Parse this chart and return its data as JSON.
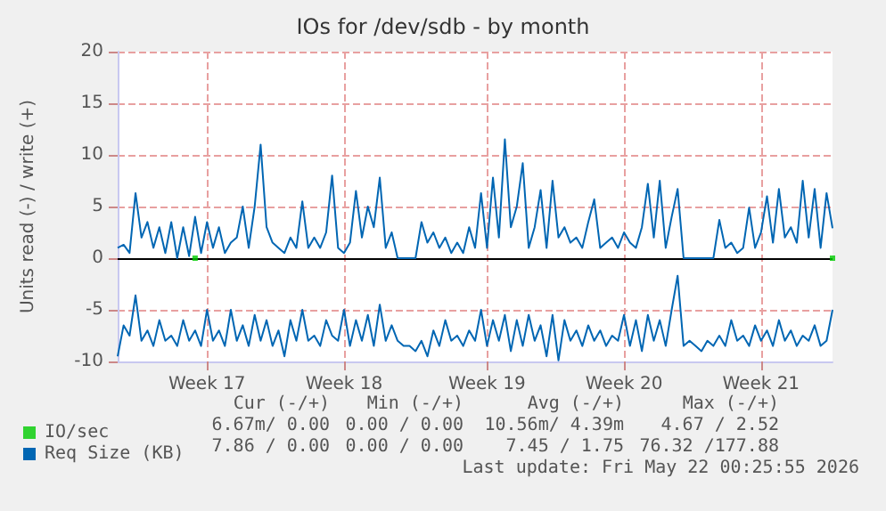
{
  "chart_data": {
    "type": "line",
    "title": "IOs for /dev/sdb - by month",
    "ylabel": "Units read (-) / write (+)",
    "categories": [
      null,
      null,
      null,
      null,
      null,
      null,
      null,
      null,
      null,
      null,
      null,
      null,
      null,
      null,
      null,
      "Week 17",
      null,
      null,
      null,
      null,
      null,
      null,
      null,
      null,
      null,
      null,
      null,
      null,
      null,
      null,
      null,
      null,
      null,
      null,
      null,
      null,
      null,
      null,
      "Week 18",
      null,
      null,
      null,
      null,
      null,
      null,
      null,
      null,
      null,
      null,
      null,
      null,
      null,
      null,
      null,
      null,
      null,
      null,
      null,
      null,
      null,
      null,
      null,
      "Week 19",
      null,
      null,
      null,
      null,
      null,
      null,
      null,
      null,
      null,
      null,
      null,
      null,
      null,
      null,
      null,
      null,
      null,
      null,
      null,
      null,
      null,
      null,
      "Week 20",
      null,
      null,
      null,
      null,
      null,
      null,
      null,
      null,
      null,
      null,
      null,
      null,
      null,
      null,
      null,
      null,
      null,
      null,
      null,
      null,
      null,
      null,
      "Week 21",
      null,
      null,
      null,
      null,
      null,
      null,
      null,
      null,
      null,
      null,
      null,
      null
    ],
    "series": [
      {
        "name": "Req Size (KB)",
        "color": "#0066b3",
        "values": [
          1,
          1.3,
          0.5,
          6.3,
          2,
          3.5,
          1,
          3,
          0.5,
          3.5,
          0,
          3,
          0.2,
          4,
          0.5,
          3.5,
          1,
          3,
          0.5,
          1.5,
          2,
          5,
          1,
          5,
          11,
          3,
          1.5,
          1,
          0.5,
          2,
          1,
          5.5,
          1,
          2,
          1,
          2.5,
          8,
          1,
          0.5,
          1.5,
          6.5,
          2,
          5,
          3,
          7.8,
          1,
          2.5,
          0,
          0,
          0,
          0,
          3.5,
          1.5,
          2.5,
          1,
          2,
          0.5,
          1.5,
          0.5,
          3,
          1,
          6.3,
          1,
          7.8,
          2,
          11.5,
          3,
          5,
          9.2,
          1,
          3,
          6.6,
          1,
          7.5,
          2,
          3,
          1.5,
          2,
          1,
          3.5,
          5.7,
          1,
          1.5,
          2,
          1,
          2.5,
          1.5,
          1,
          3,
          7.2,
          2,
          7.5,
          1,
          4,
          6.7,
          0,
          0,
          0,
          0,
          0,
          0,
          3.7,
          1,
          1.5,
          0.5,
          1,
          4.9,
          1,
          2.5,
          6,
          1.5,
          6.7,
          2,
          3,
          1.5,
          7.5,
          2,
          6.7,
          1,
          6.3,
          2.9
        ]
      },
      {
        "color": "#0066b3",
        "values": [
          -9.5,
          -6.5,
          -7.5,
          -3.6,
          -8,
          -7,
          -8.5,
          -6,
          -8,
          -7.5,
          -8.5,
          -6,
          -8,
          -7,
          -8.5,
          -5,
          -8,
          -7,
          -8.5,
          -5,
          -8,
          -6.5,
          -8.5,
          -5.5,
          -8,
          -6,
          -8.5,
          -7,
          -9.5,
          -6,
          -8,
          -5,
          -8,
          -7.5,
          -8.5,
          -6,
          -7.5,
          -8,
          -5,
          -8.5,
          -6,
          -8,
          -5.5,
          -8.5,
          -4.5,
          -8,
          -6.5,
          -8,
          -8.5,
          -8.5,
          -9,
          -8,
          -9.5,
          -7,
          -8.5,
          -6,
          -8,
          -7.5,
          -8.5,
          -7,
          -8,
          -5,
          -8.5,
          -6,
          -8,
          -5.5,
          -9,
          -6,
          -8.5,
          -5.5,
          -8,
          -6.5,
          -9.5,
          -5.5,
          -9.9,
          -6,
          -8,
          -7,
          -8.5,
          -6.5,
          -8,
          -7,
          -8.5,
          -7.5,
          -8,
          -5.5,
          -8.5,
          -6,
          -9,
          -5.5,
          -8,
          -6,
          -8.5,
          -5,
          -1.7,
          -8.5,
          -8,
          -8.5,
          -9,
          -8,
          -8.5,
          -7.5,
          -8.5,
          -6,
          -8,
          -7.5,
          -8.5,
          -6.5,
          -8,
          -7,
          -8.5,
          -6,
          -8,
          -7,
          -8.5,
          -7.5,
          -8,
          -6.5,
          -8.5,
          -8,
          -5
        ]
      },
      {
        "name": "IO/sec",
        "type": "scatter",
        "marker": "square",
        "color": "#00cc00",
        "values": [
          null,
          null,
          null,
          null,
          null,
          null,
          null,
          null,
          null,
          null,
          null,
          null,
          null,
          0,
          null,
          null,
          null,
          null,
          null,
          null,
          null,
          null,
          null,
          null,
          null,
          null,
          null,
          null,
          null,
          null,
          null,
          null,
          null,
          null,
          null,
          null,
          null,
          null,
          null,
          null,
          null,
          null,
          null,
          null,
          null,
          null,
          null,
          null,
          null,
          null,
          null,
          null,
          null,
          null,
          null,
          null,
          null,
          null,
          null,
          null,
          null,
          null,
          null,
          null,
          null,
          null,
          null,
          null,
          null,
          null,
          null,
          null,
          null,
          null,
          null,
          null,
          null,
          null,
          null,
          null,
          null,
          null,
          null,
          null,
          null,
          null,
          null,
          null,
          null,
          null,
          null,
          null,
          null,
          null,
          null,
          null,
          null,
          null,
          null,
          null,
          null,
          null,
          null,
          null,
          null,
          null,
          null,
          null,
          null,
          null,
          null,
          null,
          null,
          null,
          null,
          null,
          null,
          null,
          null,
          null,
          0
        ]
      }
    ],
    "ref_lines": [
      {
        "axis": "y",
        "value": 0,
        "color": "#000000"
      }
    ],
    "ylim": [
      -10,
      20
    ],
    "yticks": [
      -10,
      -5,
      0,
      5,
      10,
      15,
      20
    ],
    "grid": true,
    "legend": "bottom left",
    "marker": "none",
    "annotations": [
      "Cur (-/+)",
      "Min (-/+)",
      "Avg (-/+)",
      "Max (-/+)",
      "6.67m/ 0.00",
      "0.00 / 0.00",
      "10.56m/ 4.39m",
      "4.67 / 2.52",
      "7.86 / 0.00",
      "0.00 / 0.00",
      "7.45 / 1.75",
      "76.32 /177.88",
      "Last update: Fri May 22 00:25:55 2026"
    ]
  }
}
